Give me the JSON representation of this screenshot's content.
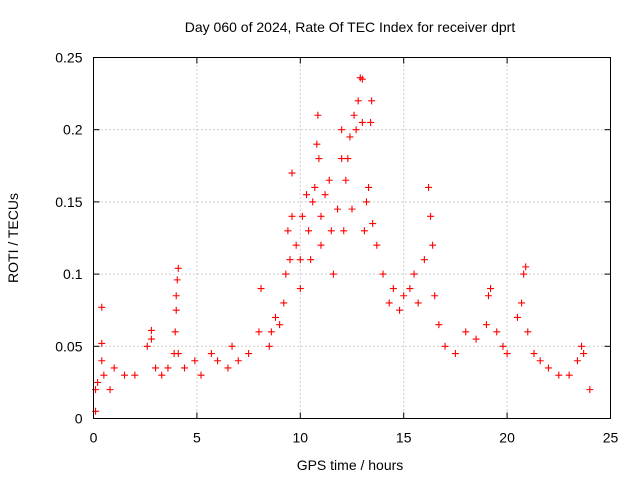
{
  "chart_data": {
    "type": "scatter",
    "title": "Day 060 of 2024, Rate Of TEC Index for receiver dprt",
    "xlabel": "GPS time / hours",
    "ylabel": "ROTI / TECUs",
    "xlim": [
      0,
      25
    ],
    "ylim": [
      0,
      0.25
    ],
    "xticks": [
      0,
      5,
      10,
      15,
      20,
      25
    ],
    "xtick_labels": [
      "0",
      "5",
      "10",
      "15",
      "20",
      "25"
    ],
    "yticks": [
      0,
      0.05,
      0.1,
      0.15,
      0.2,
      0.25
    ],
    "ytick_labels": [
      "0",
      "0.05",
      "0.1",
      "0.15",
      "0.2",
      "0.25"
    ],
    "grid": true,
    "marker": "+",
    "color": "#ff0000",
    "series": [
      {
        "name": "ROTI",
        "points": [
          [
            0.1,
            0.005
          ],
          [
            0.1,
            0.02
          ],
          [
            0.2,
            0.025
          ],
          [
            0.4,
            0.077
          ],
          [
            0.4,
            0.052
          ],
          [
            0.4,
            0.04
          ],
          [
            0.5,
            0.03
          ],
          [
            0.8,
            0.02
          ],
          [
            1.0,
            0.035
          ],
          [
            1.5,
            0.03
          ],
          [
            2.0,
            0.03
          ],
          [
            2.6,
            0.05
          ],
          [
            2.8,
            0.055
          ],
          [
            2.8,
            0.061
          ],
          [
            3.0,
            0.035
          ],
          [
            3.3,
            0.03
          ],
          [
            3.6,
            0.035
          ],
          [
            3.9,
            0.045
          ],
          [
            3.95,
            0.06
          ],
          [
            4.0,
            0.075
          ],
          [
            4.0,
            0.085
          ],
          [
            4.05,
            0.096
          ],
          [
            4.1,
            0.104
          ],
          [
            4.1,
            0.045
          ],
          [
            4.4,
            0.035
          ],
          [
            4.9,
            0.04
          ],
          [
            5.2,
            0.03
          ],
          [
            5.7,
            0.045
          ],
          [
            6.0,
            0.04
          ],
          [
            6.5,
            0.035
          ],
          [
            6.7,
            0.05
          ],
          [
            7.0,
            0.04
          ],
          [
            7.5,
            0.045
          ],
          [
            8.0,
            0.06
          ],
          [
            8.1,
            0.09
          ],
          [
            8.5,
            0.05
          ],
          [
            8.6,
            0.06
          ],
          [
            8.8,
            0.07
          ],
          [
            9.0,
            0.065
          ],
          [
            9.2,
            0.08
          ],
          [
            9.3,
            0.1
          ],
          [
            9.4,
            0.13
          ],
          [
            9.5,
            0.11
          ],
          [
            9.6,
            0.17
          ],
          [
            9.6,
            0.14
          ],
          [
            9.8,
            0.12
          ],
          [
            10.0,
            0.09
          ],
          [
            10.0,
            0.11
          ],
          [
            10.1,
            0.14
          ],
          [
            10.3,
            0.155
          ],
          [
            10.4,
            0.13
          ],
          [
            10.5,
            0.11
          ],
          [
            10.6,
            0.15
          ],
          [
            10.7,
            0.16
          ],
          [
            10.8,
            0.19
          ],
          [
            10.85,
            0.21
          ],
          [
            10.9,
            0.18
          ],
          [
            11.0,
            0.14
          ],
          [
            11.0,
            0.12
          ],
          [
            11.2,
            0.155
          ],
          [
            11.4,
            0.165
          ],
          [
            11.5,
            0.13
          ],
          [
            11.6,
            0.1
          ],
          [
            11.8,
            0.145
          ],
          [
            12.0,
            0.18
          ],
          [
            12.0,
            0.2
          ],
          [
            12.1,
            0.13
          ],
          [
            12.2,
            0.165
          ],
          [
            12.3,
            0.18
          ],
          [
            12.4,
            0.195
          ],
          [
            12.5,
            0.145
          ],
          [
            12.6,
            0.21
          ],
          [
            12.7,
            0.2
          ],
          [
            12.8,
            0.22
          ],
          [
            12.9,
            0.236
          ],
          [
            13.0,
            0.235
          ],
          [
            13.0,
            0.205
          ],
          [
            13.1,
            0.13
          ],
          [
            13.2,
            0.15
          ],
          [
            13.3,
            0.16
          ],
          [
            13.4,
            0.205
          ],
          [
            13.45,
            0.22
          ],
          [
            13.5,
            0.135
          ],
          [
            13.7,
            0.12
          ],
          [
            14.0,
            0.1
          ],
          [
            14.3,
            0.08
          ],
          [
            14.5,
            0.09
          ],
          [
            14.8,
            0.075
          ],
          [
            15.0,
            0.085
          ],
          [
            15.3,
            0.09
          ],
          [
            15.5,
            0.1
          ],
          [
            15.7,
            0.08
          ],
          [
            16.0,
            0.11
          ],
          [
            16.2,
            0.16
          ],
          [
            16.3,
            0.14
          ],
          [
            16.4,
            0.12
          ],
          [
            16.5,
            0.085
          ],
          [
            16.7,
            0.065
          ],
          [
            17.0,
            0.05
          ],
          [
            17.5,
            0.045
          ],
          [
            18.0,
            0.06
          ],
          [
            18.5,
            0.055
          ],
          [
            19.0,
            0.065
          ],
          [
            19.1,
            0.085
          ],
          [
            19.2,
            0.09
          ],
          [
            19.5,
            0.06
          ],
          [
            19.8,
            0.05
          ],
          [
            20.0,
            0.045
          ],
          [
            20.5,
            0.07
          ],
          [
            20.7,
            0.08
          ],
          [
            20.8,
            0.1
          ],
          [
            20.9,
            0.105
          ],
          [
            21.0,
            0.06
          ],
          [
            21.3,
            0.045
          ],
          [
            21.6,
            0.04
          ],
          [
            22.0,
            0.035
          ],
          [
            22.5,
            0.03
          ],
          [
            23.0,
            0.03
          ],
          [
            23.4,
            0.04
          ],
          [
            23.6,
            0.05
          ],
          [
            23.7,
            0.045
          ],
          [
            24.0,
            0.02
          ]
        ]
      }
    ]
  }
}
